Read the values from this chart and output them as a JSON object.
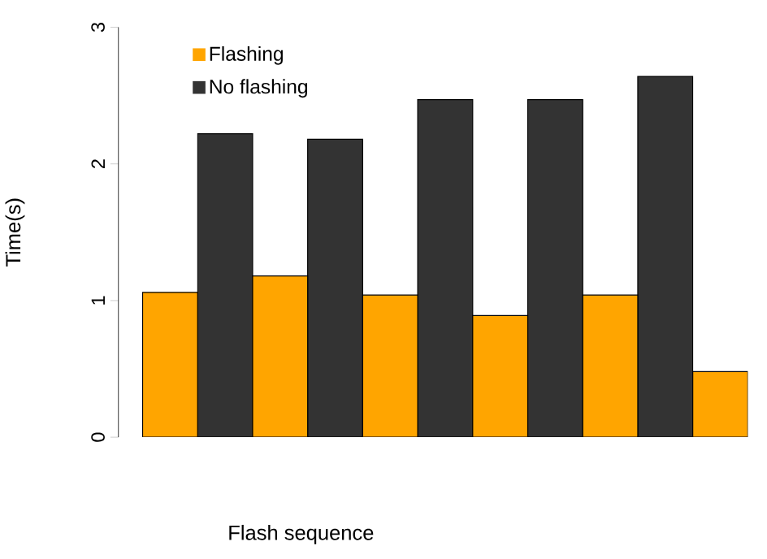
{
  "chart_data": {
    "type": "bar",
    "xlabel": "Flash sequence",
    "ylabel": "Time(s)",
    "categories": [
      null,
      null,
      null,
      null,
      null,
      null,
      null,
      null,
      null,
      null,
      null
    ],
    "series": [
      {
        "name": "Flashing",
        "color": "#ffa500",
        "values": [
          1.06,
          null,
          1.18,
          null,
          1.04,
          null,
          0.89,
          null,
          1.04,
          null,
          0.48
        ]
      },
      {
        "name": "No flashing",
        "color": "#333333",
        "values": [
          null,
          2.22,
          null,
          2.18,
          null,
          2.47,
          null,
          2.47,
          null,
          2.64,
          null
        ]
      }
    ],
    "stacked": true,
    "ylim": [
      0,
      3
    ],
    "yticks": [
      0,
      1,
      2,
      3
    ],
    "legend": "top left",
    "tick_labels": "y"
  }
}
